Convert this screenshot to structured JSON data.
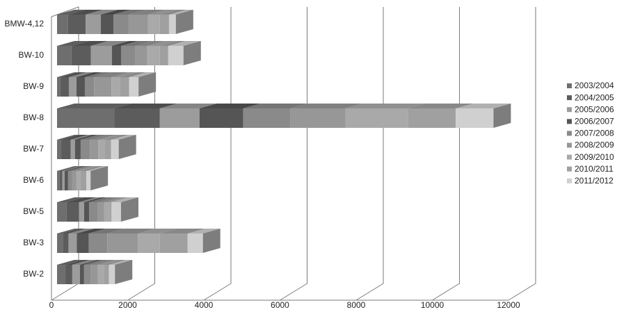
{
  "chart_data": {
    "type": "bar3d",
    "orientation": "horizontal",
    "stacked": true,
    "categories": [
      "BMW-4,12",
      "BW-10",
      "BW-9",
      "BW-8",
      "BW-7",
      "BW-6",
      "BW-5",
      "BW-3",
      "BW-2"
    ],
    "series": [
      {
        "name": "2003/2004",
        "color": "#6e6e6e",
        "values": [
          290,
          380,
          90,
          1500,
          110,
          70,
          250,
          150,
          220
        ]
      },
      {
        "name": "2004/2005",
        "color": "#5c5c5c",
        "values": [
          460,
          510,
          220,
          1200,
          250,
          70,
          330,
          150,
          180
        ]
      },
      {
        "name": "2005/2006",
        "color": "#9c9c9c",
        "values": [
          400,
          550,
          200,
          1040,
          110,
          60,
          130,
          220,
          200
        ]
      },
      {
        "name": "2006/2007",
        "color": "#555555",
        "values": [
          330,
          240,
          220,
          1150,
          150,
          90,
          130,
          310,
          110
        ]
      },
      {
        "name": "2007/2008",
        "color": "#8a8a8a",
        "values": [
          400,
          380,
          240,
          1240,
          240,
          110,
          220,
          490,
          180
        ]
      },
      {
        "name": "2008/2009",
        "color": "#979797",
        "values": [
          510,
          310,
          460,
          1440,
          220,
          110,
          180,
          800,
          180
        ]
      },
      {
        "name": "2009/2010",
        "color": "#a9a9a9",
        "values": [
          310,
          330,
          220,
          1640,
          180,
          110,
          150,
          580,
          160
        ]
      },
      {
        "name": "2010/2011",
        "color": "#a0a0a0",
        "values": [
          240,
          220,
          240,
          1260,
          160,
          150,
          40,
          730,
          130
        ]
      },
      {
        "name": "2011/2012",
        "color": "#d0d0d0",
        "values": [
          180,
          400,
          250,
          990,
          200,
          110,
          250,
          400,
          160
        ]
      }
    ],
    "xlim": [
      0,
      12000
    ],
    "xticks": [
      0,
      2000,
      4000,
      6000,
      8000,
      10000,
      12000
    ],
    "grid": true,
    "legend": "right"
  }
}
